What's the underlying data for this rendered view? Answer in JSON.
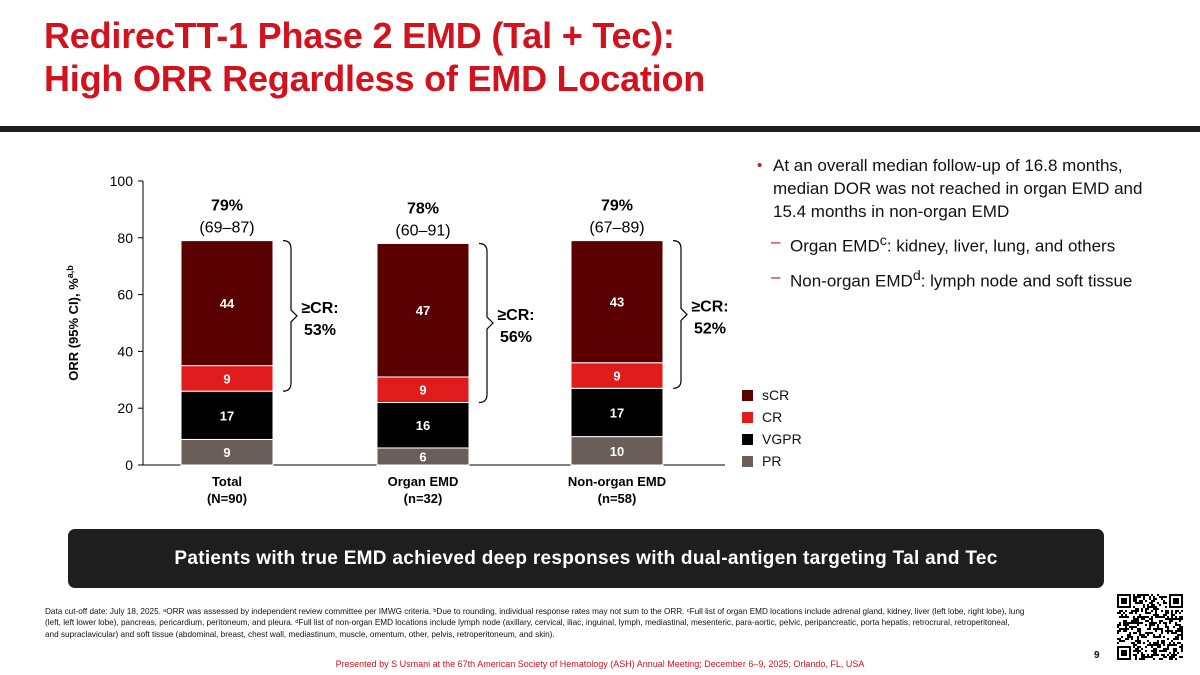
{
  "slide": {
    "title_line1": "RedirecTT-1 Phase 2 EMD (Tal + Tec):",
    "title_line2": "High ORR Regardless of EMD Location",
    "page_number": "9"
  },
  "colors": {
    "title": "#d2121c",
    "sCR": "#5a0000",
    "CR": "#e01b1b",
    "VGPR": "#000000",
    "PR": "#6b5e59",
    "banner": "#1e1e1e"
  },
  "chart_data": {
    "type": "bar",
    "stacked": true,
    "ylabel": "ORR (95% CI), %",
    "ylabel_sup": "a,b",
    "ylim": [
      0,
      100
    ],
    "yticks": [
      0,
      20,
      40,
      60,
      80,
      100
    ],
    "categories": [
      {
        "name": "Total",
        "n": "(N=90)"
      },
      {
        "name": "Organ EMD",
        "n": "(n=32)"
      },
      {
        "name": "Non-organ EMD",
        "n": "(n=58)"
      }
    ],
    "series": [
      {
        "name": "PR",
        "values": [
          9,
          6,
          10
        ]
      },
      {
        "name": "VGPR",
        "values": [
          17,
          16,
          17
        ]
      },
      {
        "name": "CR",
        "values": [
          9,
          9,
          9
        ]
      },
      {
        "name": "sCR",
        "values": [
          44,
          47,
          43
        ]
      }
    ],
    "segment_labels": [
      [
        "9",
        "17",
        "9",
        "44"
      ],
      [
        "6",
        "16",
        "9",
        "47"
      ],
      [
        "10",
        "17",
        "9",
        "43"
      ]
    ],
    "orr": [
      {
        "pct": "79%",
        "ci": "(69–87)"
      },
      {
        "pct": "78%",
        "ci": "(60–91)"
      },
      {
        "pct": "79%",
        "ci": "(67–89)"
      }
    ],
    "cr_brackets": [
      {
        "label": "≥CR:",
        "value": "53%"
      },
      {
        "label": "≥CR:",
        "value": "56%"
      },
      {
        "label": "≥CR:",
        "value": "52%"
      }
    ],
    "legend": [
      "sCR",
      "CR",
      "VGPR",
      "PR"
    ]
  },
  "bullets": {
    "main": "At an overall median follow-up of 16.8 months, median DOR was not reached in organ EMD and 15.4 months in non-organ EMD",
    "sub1_pre": "Organ EMD",
    "sub1_sup": "c",
    "sub1_post": ": kidney, liver, lung, and others",
    "sub2_pre": "Non-organ EMD",
    "sub2_sup": "d",
    "sub2_post": ": lymph node and soft tissue"
  },
  "banner": "Patients with true EMD achieved deep responses with dual-antigen targeting Tal and Tec",
  "footnote": "Data cut-off date: July 18, 2025. ᵃORR was assessed by independent review committee per IMWG criteria. ᵇDue to rounding, individual response rates may not sum to the ORR. ᶜFull list of organ EMD locations include adrenal gland, kidney, liver (left lobe, right lobe), lung (left, left lower lobe), pancreas, pericardium, peritoneum, and pleura. ᵈFull list of non-organ EMD locations include lymph node (axillary, cervical, iliac, inguinal, lymph, mediastinal, mesenteric, para-aortic, pelvic, peripancreatic, porta hepatis, retrocrural, retroperitoneal, and supraclavicular) and soft tissue (abdominal, breast, chest wall, mediastinum, muscle, omentum, other, pelvis, retroperitoneum, and skin).",
  "presenter": "Presented by S Usmani at the 67th American Society of Hematology (ASH) Annual Meeting; December 6–9, 2025; Orlando, FL, USA"
}
